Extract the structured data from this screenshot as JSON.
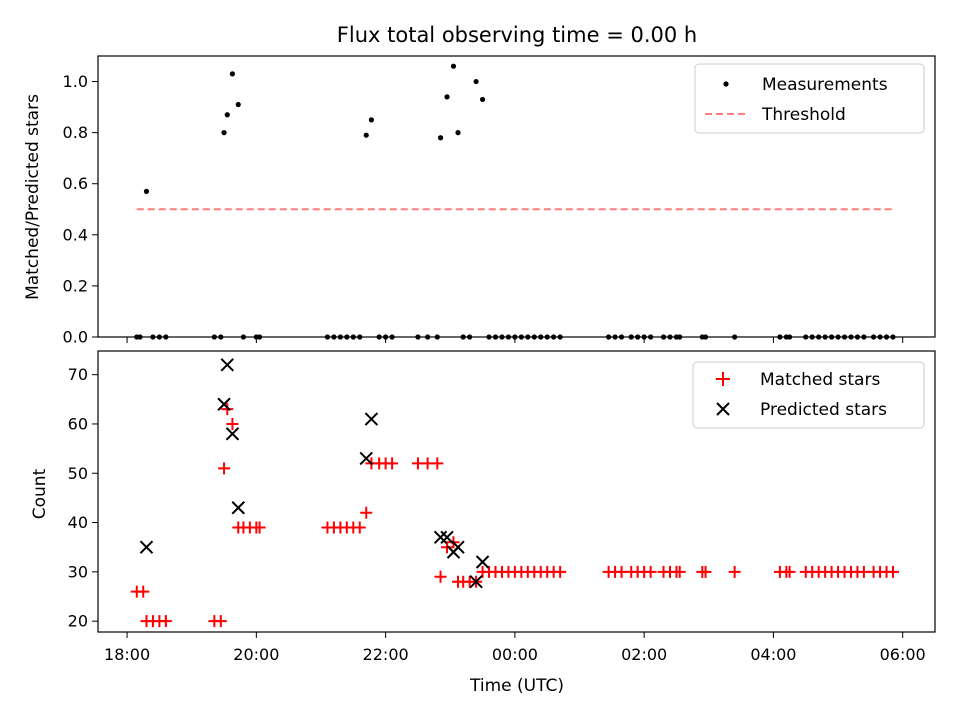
{
  "chart_data": {
    "title": "Flux total observing time = 0.00 h",
    "xlabel": "Time (UTC)",
    "x_ticks": [
      "18:00",
      "20:00",
      "22:00",
      "00:00",
      "02:00",
      "04:00",
      "06:00"
    ],
    "x_tick_hours": [
      18,
      20,
      22,
      24,
      26,
      28,
      30
    ],
    "xlim_hours": [
      17.55,
      30.5
    ],
    "panels": [
      {
        "type": "scatter",
        "ylabel": "Matched/Predicted stars",
        "ylim": [
          0,
          1.1
        ],
        "y_ticks": [
          0.0,
          0.2,
          0.4,
          0.6,
          0.8,
          1.0
        ],
        "y_tick_labels": [
          "0.0",
          "0.2",
          "0.4",
          "0.6",
          "0.8",
          "1.0"
        ],
        "legend_position": "top-right",
        "series": [
          {
            "name": "Measurements",
            "marker": "dot",
            "color": "#000000",
            "points": [
              [
                18.15,
                0
              ],
              [
                18.2,
                0
              ],
              [
                18.3,
                0.57
              ],
              [
                18.4,
                0
              ],
              [
                18.5,
                0
              ],
              [
                18.6,
                0
              ],
              [
                19.35,
                0
              ],
              [
                19.45,
                0
              ],
              [
                19.5,
                0.8
              ],
              [
                19.55,
                0.87
              ],
              [
                19.63,
                1.03
              ],
              [
                19.72,
                0.91
              ],
              [
                19.8,
                0
              ],
              [
                20.0,
                0
              ],
              [
                20.05,
                0
              ],
              [
                21.1,
                0
              ],
              [
                21.2,
                0
              ],
              [
                21.3,
                0
              ],
              [
                21.4,
                0
              ],
              [
                21.5,
                0
              ],
              [
                21.6,
                0
              ],
              [
                21.7,
                0.79
              ],
              [
                21.78,
                0.85
              ],
              [
                21.9,
                0
              ],
              [
                22.0,
                0
              ],
              [
                22.1,
                0
              ],
              [
                22.5,
                0
              ],
              [
                22.65,
                0
              ],
              [
                22.8,
                0
              ],
              [
                22.85,
                0.78
              ],
              [
                22.95,
                0.94
              ],
              [
                23.05,
                1.06
              ],
              [
                23.12,
                0.8
              ],
              [
                23.2,
                0
              ],
              [
                23.3,
                0
              ],
              [
                23.4,
                1.0
              ],
              [
                23.5,
                0.93
              ],
              [
                23.6,
                0
              ],
              [
                23.7,
                0
              ],
              [
                23.8,
                0
              ],
              [
                23.9,
                0
              ],
              [
                24.0,
                0
              ],
              [
                24.1,
                0
              ],
              [
                24.2,
                0
              ],
              [
                24.3,
                0
              ],
              [
                24.4,
                0
              ],
              [
                24.5,
                0
              ],
              [
                24.6,
                0
              ],
              [
                24.7,
                0
              ],
              [
                25.45,
                0
              ],
              [
                25.55,
                0
              ],
              [
                25.65,
                0
              ],
              [
                25.8,
                0
              ],
              [
                25.9,
                0
              ],
              [
                26.0,
                0
              ],
              [
                26.1,
                0
              ],
              [
                26.3,
                0
              ],
              [
                26.4,
                0
              ],
              [
                26.5,
                0
              ],
              [
                26.55,
                0
              ],
              [
                26.9,
                0
              ],
              [
                26.95,
                0
              ],
              [
                27.4,
                0
              ],
              [
                28.1,
                0
              ],
              [
                28.2,
                0
              ],
              [
                28.25,
                0
              ],
              [
                28.5,
                0
              ],
              [
                28.6,
                0
              ],
              [
                28.7,
                0
              ],
              [
                28.8,
                0
              ],
              [
                28.9,
                0
              ],
              [
                29.0,
                0
              ],
              [
                29.1,
                0
              ],
              [
                29.2,
                0
              ],
              [
                29.3,
                0
              ],
              [
                29.4,
                0
              ],
              [
                29.55,
                0
              ],
              [
                29.65,
                0
              ],
              [
                29.75,
                0
              ],
              [
                29.85,
                0
              ]
            ]
          },
          {
            "name": "Threshold",
            "marker": "dashed-line",
            "color": "#ff7f7f",
            "x": [
              18.15,
              29.85
            ],
            "y": [
              0.5,
              0.5
            ]
          }
        ]
      },
      {
        "type": "scatter",
        "ylabel": "Count",
        "ylim": [
          17.8,
          74.8
        ],
        "y_ticks": [
          20,
          30,
          40,
          50,
          60,
          70
        ],
        "y_tick_labels": [
          "20",
          "30",
          "40",
          "50",
          "60",
          "70"
        ],
        "legend_position": "top-right",
        "series": [
          {
            "name": "Matched stars",
            "marker": "plus",
            "color": "#ff0000",
            "points": [
              [
                18.15,
                26
              ],
              [
                18.25,
                26
              ],
              [
                18.3,
                20
              ],
              [
                18.4,
                20
              ],
              [
                18.5,
                20
              ],
              [
                18.6,
                20
              ],
              [
                19.35,
                20
              ],
              [
                19.45,
                20
              ],
              [
                19.5,
                51
              ],
              [
                19.55,
                63
              ],
              [
                19.63,
                60
              ],
              [
                19.72,
                39
              ],
              [
                19.8,
                39
              ],
              [
                19.9,
                39
              ],
              [
                20.0,
                39
              ],
              [
                20.05,
                39
              ],
              [
                21.1,
                39
              ],
              [
                21.2,
                39
              ],
              [
                21.3,
                39
              ],
              [
                21.4,
                39
              ],
              [
                21.5,
                39
              ],
              [
                21.6,
                39
              ],
              [
                21.7,
                42
              ],
              [
                21.78,
                52
              ],
              [
                21.9,
                52
              ],
              [
                22.0,
                52
              ],
              [
                22.1,
                52
              ],
              [
                22.5,
                52
              ],
              [
                22.65,
                52
              ],
              [
                22.8,
                52
              ],
              [
                22.85,
                29
              ],
              [
                22.95,
                35
              ],
              [
                23.05,
                36
              ],
              [
                23.12,
                28
              ],
              [
                23.2,
                28
              ],
              [
                23.3,
                28
              ],
              [
                23.4,
                28
              ],
              [
                23.5,
                30
              ],
              [
                23.6,
                30
              ],
              [
                23.7,
                30
              ],
              [
                23.8,
                30
              ],
              [
                23.9,
                30
              ],
              [
                24.0,
                30
              ],
              [
                24.1,
                30
              ],
              [
                24.2,
                30
              ],
              [
                24.3,
                30
              ],
              [
                24.4,
                30
              ],
              [
                24.5,
                30
              ],
              [
                24.6,
                30
              ],
              [
                24.7,
                30
              ],
              [
                25.45,
                30
              ],
              [
                25.55,
                30
              ],
              [
                25.65,
                30
              ],
              [
                25.8,
                30
              ],
              [
                25.9,
                30
              ],
              [
                26.0,
                30
              ],
              [
                26.1,
                30
              ],
              [
                26.3,
                30
              ],
              [
                26.4,
                30
              ],
              [
                26.5,
                30
              ],
              [
                26.55,
                30
              ],
              [
                26.9,
                30
              ],
              [
                26.95,
                30
              ],
              [
                27.4,
                30
              ],
              [
                28.1,
                30
              ],
              [
                28.2,
                30
              ],
              [
                28.25,
                30
              ],
              [
                28.5,
                30
              ],
              [
                28.6,
                30
              ],
              [
                28.7,
                30
              ],
              [
                28.8,
                30
              ],
              [
                28.9,
                30
              ],
              [
                29.0,
                30
              ],
              [
                29.1,
                30
              ],
              [
                29.2,
                30
              ],
              [
                29.3,
                30
              ],
              [
                29.4,
                30
              ],
              [
                29.55,
                30
              ],
              [
                29.65,
                30
              ],
              [
                29.75,
                30
              ],
              [
                29.85,
                30
              ]
            ]
          },
          {
            "name": "Predicted stars",
            "marker": "x",
            "color": "#000000",
            "points": [
              [
                18.3,
                35
              ],
              [
                19.5,
                64
              ],
              [
                19.55,
                72
              ],
              [
                19.63,
                58
              ],
              [
                19.72,
                43
              ],
              [
                21.7,
                53
              ],
              [
                21.78,
                61
              ],
              [
                22.85,
                37
              ],
              [
                22.95,
                37
              ],
              [
                23.05,
                34
              ],
              [
                23.12,
                35
              ],
              [
                23.4,
                28
              ],
              [
                23.5,
                32
              ]
            ]
          }
        ]
      }
    ]
  }
}
